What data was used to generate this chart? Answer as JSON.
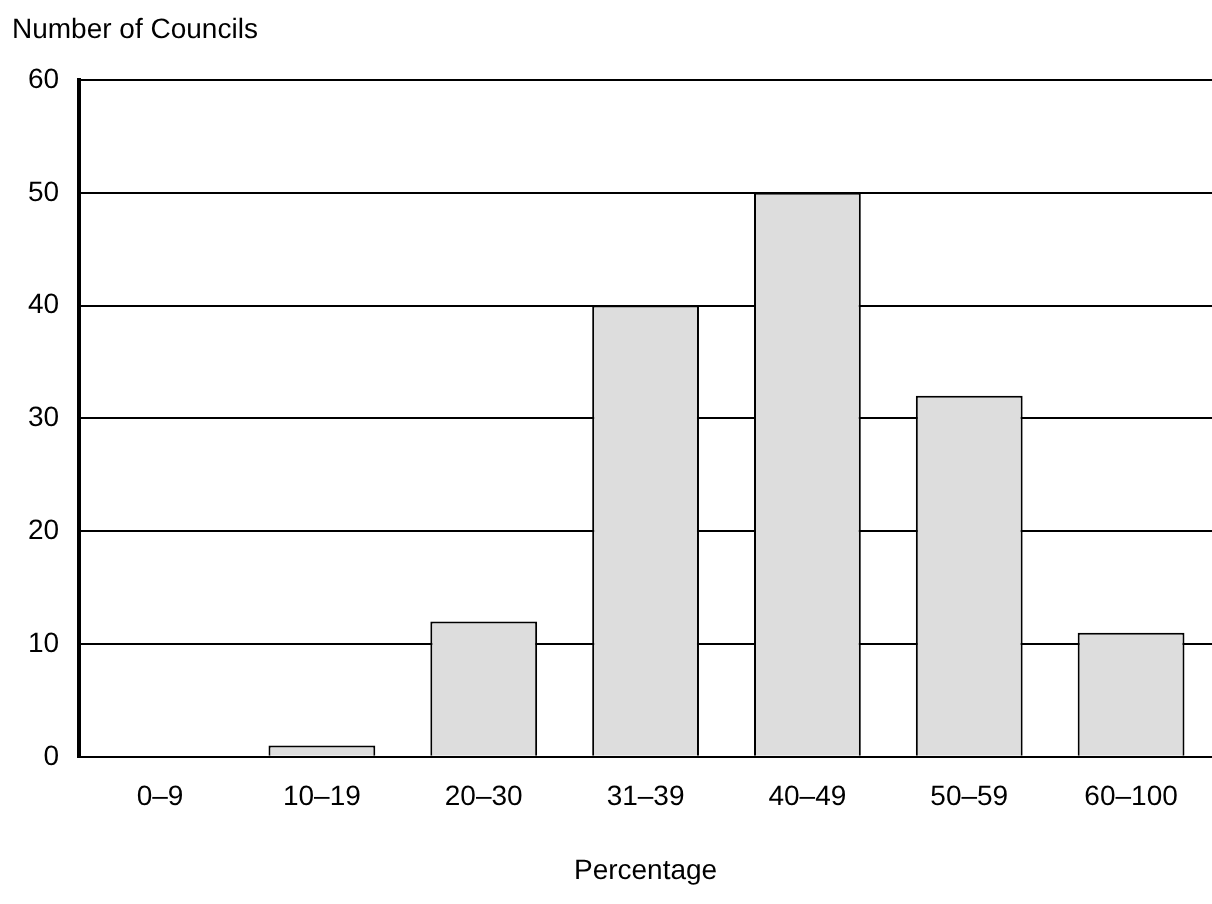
{
  "chart_data": {
    "type": "bar",
    "ylabel": "Number of Councils",
    "xlabel": "Percentage",
    "categories": [
      "0–9",
      "10–19",
      "20–30",
      "31–39",
      "40–49",
      "50–59",
      "60–100"
    ],
    "values": [
      0,
      1,
      12,
      40,
      50,
      32,
      11
    ],
    "color": "#dddddd",
    "ylim": [
      0,
      60
    ],
    "yticks": [
      0,
      10,
      20,
      30,
      40,
      50,
      60
    ],
    "grid": "y",
    "legend": false
  }
}
